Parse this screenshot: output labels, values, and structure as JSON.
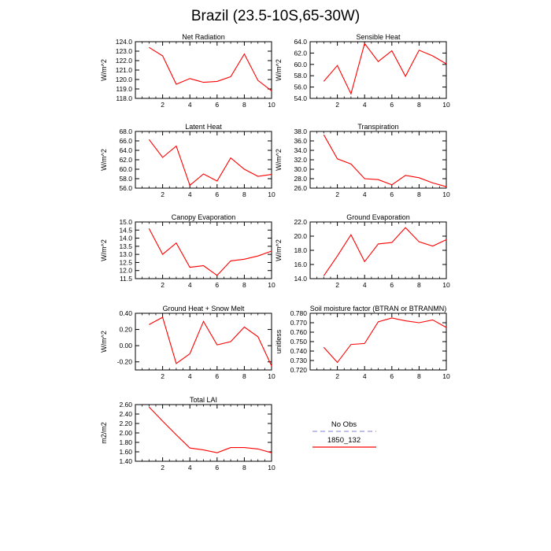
{
  "title": "Brazil (23.5-10S,65-30W)",
  "colors": {
    "series": "#ff0000",
    "obs": "#9999dd",
    "axis": "#000000"
  },
  "legend": {
    "entries": [
      {
        "label": "No Obs",
        "style": "dashed"
      },
      {
        "label": "1850_132",
        "style": "solid"
      }
    ]
  },
  "chart_data": [
    {
      "type": "line",
      "title": "Net Radiation",
      "ylabel": "W/m^2",
      "xlim": [
        0,
        10
      ],
      "ylim": [
        118,
        124
      ],
      "xticks": [
        2,
        4,
        6,
        8,
        10
      ],
      "yticks": [
        118,
        119,
        120,
        121,
        122,
        123,
        124
      ],
      "ytick_labels": [
        "118.0",
        "119.0",
        "120.0",
        "121.0",
        "122.0",
        "123.0",
        "124.0"
      ],
      "x": [
        1,
        2,
        3,
        4,
        5,
        6,
        7,
        8,
        9,
        10
      ],
      "values": [
        123.4,
        122.5,
        119.5,
        120.1,
        119.7,
        119.8,
        120.3,
        122.7,
        119.9,
        118.8
      ]
    },
    {
      "type": "line",
      "title": "Sensible Heat",
      "ylabel": "W/m^2",
      "xlim": [
        0,
        10
      ],
      "ylim": [
        54,
        64
      ],
      "xticks": [
        2,
        4,
        6,
        8,
        10
      ],
      "yticks": [
        54,
        56,
        58,
        60,
        62,
        64
      ],
      "ytick_labels": [
        "54.0",
        "56.0",
        "58.0",
        "60.0",
        "62.0",
        "64.0"
      ],
      "x": [
        1,
        2,
        3,
        4,
        5,
        6,
        7,
        8,
        9,
        10
      ],
      "values": [
        57.0,
        59.8,
        54.8,
        63.7,
        60.5,
        62.4,
        57.9,
        62.5,
        61.5,
        60.1
      ]
    },
    {
      "type": "line",
      "title": "Latent Heat",
      "ylabel": "W/m^2",
      "xlim": [
        0,
        10
      ],
      "ylim": [
        56,
        68
      ],
      "xticks": [
        2,
        4,
        6,
        8,
        10
      ],
      "yticks": [
        56,
        58,
        60,
        62,
        64,
        66,
        68
      ],
      "ytick_labels": [
        "56.0",
        "58.0",
        "60.0",
        "62.0",
        "64.0",
        "66.0",
        "68.0"
      ],
      "x": [
        1,
        2,
        3,
        4,
        5,
        6,
        7,
        8,
        9,
        10
      ],
      "values": [
        66.3,
        62.5,
        64.9,
        56.6,
        59.0,
        57.5,
        62.4,
        60.0,
        58.5,
        58.9
      ]
    },
    {
      "type": "line",
      "title": "Transpiration",
      "ylabel": "W/m^2",
      "xlim": [
        0,
        10
      ],
      "ylim": [
        26,
        38
      ],
      "xticks": [
        2,
        4,
        6,
        8,
        10
      ],
      "yticks": [
        26,
        28,
        30,
        32,
        34,
        36,
        38
      ],
      "ytick_labels": [
        "26.0",
        "28.0",
        "30.0",
        "32.0",
        "34.0",
        "36.0",
        "38.0"
      ],
      "x": [
        1,
        2,
        3,
        4,
        5,
        6,
        7,
        8,
        9,
        10
      ],
      "values": [
        37.3,
        32.2,
        31.1,
        28.0,
        27.8,
        26.7,
        28.7,
        28.2,
        27.1,
        26.3
      ]
    },
    {
      "type": "line",
      "title": "Canopy Evaporation",
      "ylabel": "W/m^2",
      "xlim": [
        0,
        10
      ],
      "ylim": [
        11.5,
        15.0
      ],
      "xticks": [
        2,
        4,
        6,
        8,
        10
      ],
      "yticks": [
        11.5,
        12.0,
        12.5,
        13.0,
        13.5,
        14.0,
        14.5,
        15.0
      ],
      "ytick_labels": [
        "11.5",
        "12.0",
        "12.5",
        "13.0",
        "13.5",
        "14.0",
        "14.5",
        "15.0"
      ],
      "x": [
        1,
        2,
        3,
        4,
        5,
        6,
        7,
        8,
        9,
        10
      ],
      "values": [
        14.6,
        13.0,
        13.7,
        12.2,
        12.3,
        11.7,
        12.6,
        12.7,
        12.9,
        13.2
      ]
    },
    {
      "type": "line",
      "title": "Ground Evaporation",
      "ylabel": "W/m^2",
      "xlim": [
        0,
        10
      ],
      "ylim": [
        14,
        22
      ],
      "xticks": [
        2,
        4,
        6,
        8,
        10
      ],
      "yticks": [
        14,
        16,
        18,
        20,
        22
      ],
      "ytick_labels": [
        "14.0",
        "16.0",
        "18.0",
        "20.0",
        "22.0"
      ],
      "x": [
        1,
        2,
        3,
        4,
        5,
        6,
        7,
        8,
        9,
        10
      ],
      "values": [
        14.4,
        17.2,
        20.2,
        16.4,
        18.9,
        19.1,
        21.2,
        19.2,
        18.6,
        19.5
      ]
    },
    {
      "type": "line",
      "title": "Ground Heat + Snow Melt",
      "ylabel": "W/m^2",
      "xlim": [
        0,
        10
      ],
      "ylim": [
        -0.3,
        0.4
      ],
      "xticks": [
        2,
        4,
        6,
        8,
        10
      ],
      "yticks": [
        -0.2,
        0.0,
        0.2,
        0.4
      ],
      "ytick_labels": [
        "-0.20",
        "0.00",
        "0.20",
        "0.40"
      ],
      "x": [
        1,
        2,
        3,
        4,
        5,
        6,
        7,
        8,
        9,
        10
      ],
      "values": [
        0.26,
        0.35,
        -0.22,
        -0.1,
        0.3,
        0.01,
        0.05,
        0.23,
        0.11,
        -0.25
      ]
    },
    {
      "type": "line",
      "title": "Soil moisture factor (BTRAN or BTRANMN)",
      "ylabel": "unitless",
      "xlim": [
        0,
        10
      ],
      "ylim": [
        0.72,
        0.78
      ],
      "xticks": [
        2,
        4,
        6,
        8,
        10
      ],
      "yticks": [
        0.72,
        0.73,
        0.74,
        0.75,
        0.76,
        0.77,
        0.78
      ],
      "ytick_labels": [
        "0.720",
        "0.730",
        "0.740",
        "0.750",
        "0.760",
        "0.770",
        "0.780"
      ],
      "x": [
        1,
        2,
        3,
        4,
        5,
        6,
        7,
        8,
        9,
        10
      ],
      "values": [
        0.744,
        0.728,
        0.747,
        0.748,
        0.771,
        0.775,
        0.772,
        0.77,
        0.773,
        0.765
      ]
    },
    {
      "type": "line",
      "title": "Total LAI",
      "ylabel": "m2/m2",
      "xlim": [
        0,
        10
      ],
      "ylim": [
        1.4,
        2.6
      ],
      "xticks": [
        2,
        4,
        6,
        8,
        10
      ],
      "yticks": [
        1.4,
        1.6,
        1.8,
        2.0,
        2.2,
        2.4,
        2.6
      ],
      "ytick_labels": [
        "1.40",
        "1.60",
        "1.80",
        "2.00",
        "2.20",
        "2.40",
        "2.60"
      ],
      "x": [
        1,
        2,
        3,
        4,
        5,
        6,
        7,
        8,
        9,
        10
      ],
      "values": [
        2.55,
        2.25,
        1.96,
        1.68,
        1.64,
        1.58,
        1.69,
        1.69,
        1.66,
        1.58
      ]
    }
  ]
}
